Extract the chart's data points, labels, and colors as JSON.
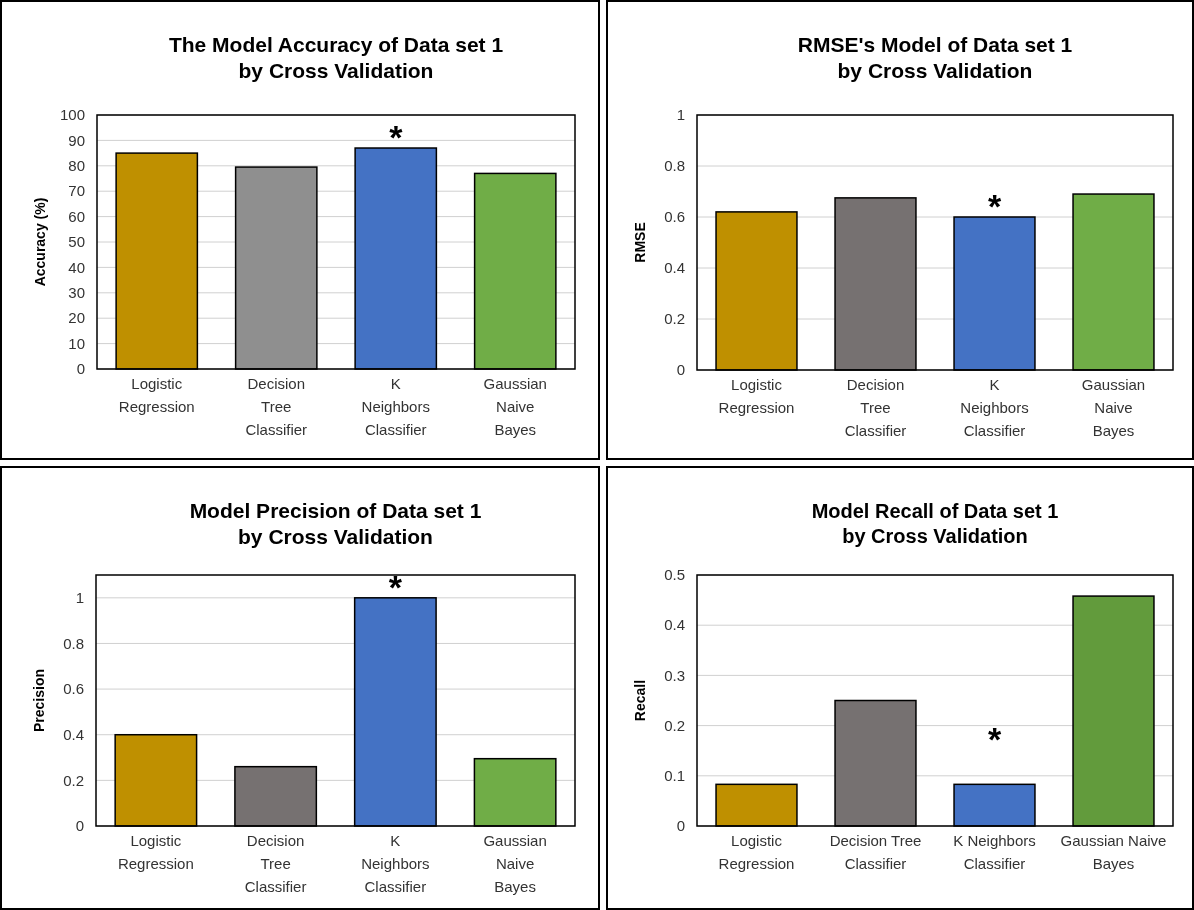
{
  "chart_data": [
    {
      "type": "bar",
      "title": "The Model Accuracy of Data set 1 by Cross Validation",
      "ylabel": "Accuracy (%)",
      "categories": [
        "Logistic Regression",
        "Decision Tree Classifier",
        "K Neighbors Classifier",
        "Gaussian Naive Bayes"
      ],
      "values": [
        85,
        79.5,
        87,
        77
      ],
      "colors": [
        "#bf9000",
        "#8f8f8f",
        "#4472c4",
        "#70ad47"
      ],
      "ylim": [
        0,
        100
      ],
      "yticks": [
        0,
        10,
        20,
        30,
        40,
        50,
        60,
        70,
        80,
        90,
        100
      ],
      "grid": "y",
      "annotations": [
        {
          "text": "*",
          "x": "K Neighbors Classifier",
          "y": 87
        }
      ]
    },
    {
      "type": "bar",
      "title": "RMSE's Model of Data set 1 by Cross Validation",
      "ylabel": "RMSE",
      "categories": [
        "Logistic Regression",
        "Decision Tree Classifier",
        "K Neighbors Classifier",
        "Gaussian Naive Bayes"
      ],
      "values": [
        0.62,
        0.675,
        0.6,
        0.69
      ],
      "colors": [
        "#bf9000",
        "#767171",
        "#4472c4",
        "#70ad47"
      ],
      "ylim": [
        0,
        1
      ],
      "yticks": [
        0,
        0.2,
        0.4,
        0.6,
        0.8,
        1
      ],
      "grid": "y",
      "annotations": [
        {
          "text": "*",
          "x": "K Neighbors Classifier",
          "y": 0.6
        }
      ]
    },
    {
      "type": "bar",
      "title": "Model Precision of Data set 1 by Cross Validation",
      "ylabel": "Precision",
      "categories": [
        "Logistic Regression",
        "Decision Tree Classifier",
        "K Neighbors Classifier",
        "Gaussian Naive Bayes"
      ],
      "values": [
        0.4,
        0.26,
        1.0,
        0.295
      ],
      "colors": [
        "#bf9000",
        "#767171",
        "#4472c4",
        "#70ad47"
      ],
      "ylim": [
        0,
        1.1
      ],
      "yticks": [
        0,
        0.2,
        0.4,
        0.6,
        0.8,
        1
      ],
      "grid": "y",
      "annotations": [
        {
          "text": "*",
          "x": "K Neighbors Classifier",
          "y": 1.0
        }
      ]
    },
    {
      "type": "bar",
      "title": "Model Recall of Data set 1 by Cross Validation",
      "ylabel": "Recall",
      "categories": [
        "Logistic Regression",
        "Decision Tree Classifier",
        "K Neighbors Classifier",
        "Gaussian Naive Bayes"
      ],
      "values": [
        0.083,
        0.25,
        0.083,
        0.458
      ],
      "colors": [
        "#bf9000",
        "#767171",
        "#4472c4",
        "#629b3c"
      ],
      "ylim": [
        0,
        0.5
      ],
      "yticks": [
        0,
        0.1,
        0.2,
        0.3,
        0.4,
        0.5
      ],
      "grid": "y",
      "annotations": [
        {
          "text": "*",
          "x": "K Neighbors Classifier",
          "y": 0.083
        }
      ]
    }
  ]
}
